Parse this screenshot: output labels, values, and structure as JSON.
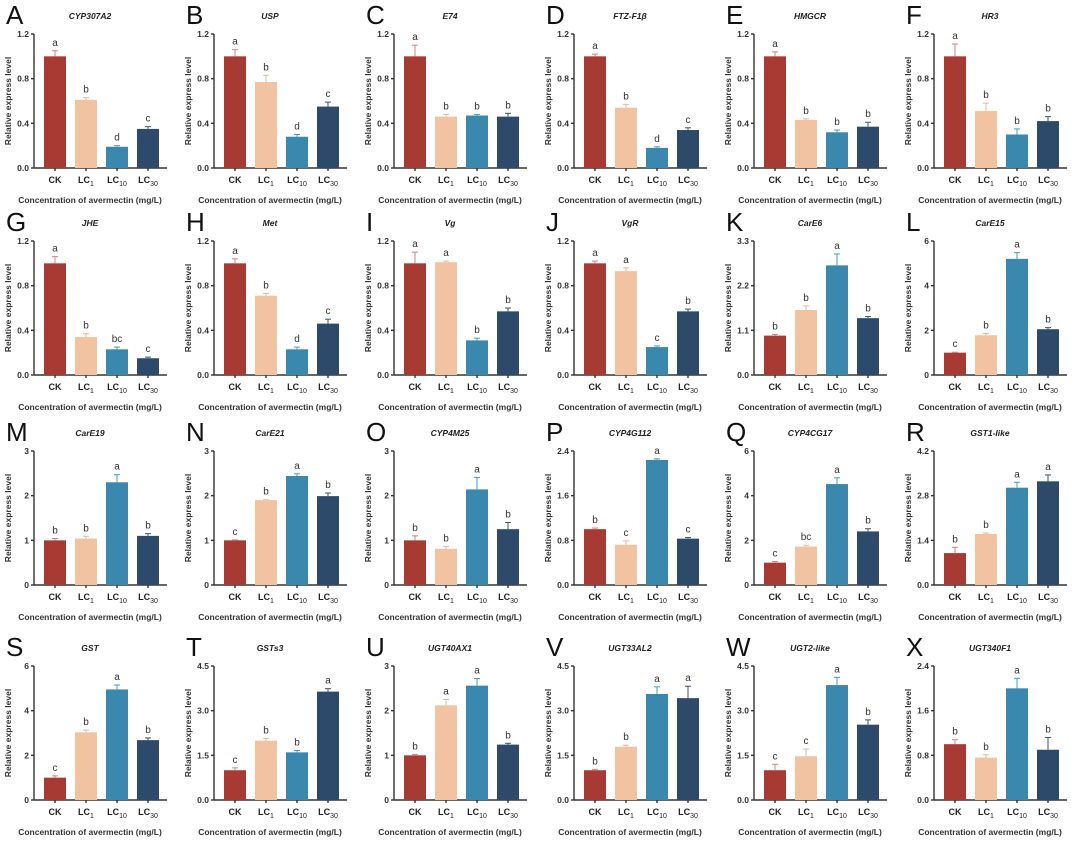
{
  "figure": {
    "x_axis_label": "Concentration of avermectin (mg/L)",
    "y_axis_label": "Relative express level",
    "categories": [
      {
        "main": "CK",
        "sub": ""
      },
      {
        "main": "LC",
        "sub": "1"
      },
      {
        "main": "LC",
        "sub": "10"
      },
      {
        "main": "LC",
        "sub": "30"
      }
    ],
    "colors": [
      "#a83a34",
      "#f2c3a0",
      "#3b88ae",
      "#2e4a6a"
    ]
  },
  "chart_data": [
    {
      "type": "bar",
      "panel": "A",
      "title": "CYP307A2",
      "ylim": [
        0,
        1.2
      ],
      "yticks": [
        "0.0",
        "0.4",
        "0.8",
        "1.2"
      ],
      "values": [
        1.0,
        0.61,
        0.19,
        0.35
      ],
      "errors": [
        0.05,
        0.02,
        0.01,
        0.02
      ],
      "significance": [
        "a",
        "b",
        "d",
        "c"
      ]
    },
    {
      "type": "bar",
      "panel": "B",
      "title": "USP",
      "ylim": [
        0,
        1.2
      ],
      "yticks": [
        "0.0",
        "0.4",
        "0.8",
        "1.2"
      ],
      "values": [
        1.0,
        0.77,
        0.28,
        0.55
      ],
      "errors": [
        0.06,
        0.06,
        0.02,
        0.04
      ],
      "significance": [
        "a",
        "b",
        "d",
        "c"
      ]
    },
    {
      "type": "bar",
      "panel": "C",
      "title": "E74",
      "ylim": [
        0,
        1.2
      ],
      "yticks": [
        "0.0",
        "0.4",
        "0.8",
        "1.2"
      ],
      "values": [
        1.0,
        0.46,
        0.47,
        0.46
      ],
      "errors": [
        0.1,
        0.02,
        0.01,
        0.03
      ],
      "significance": [
        "a",
        "b",
        "b",
        "b"
      ]
    },
    {
      "type": "bar",
      "panel": "D",
      "title": "FTZ-F1β",
      "ylim": [
        0,
        1.2
      ],
      "yticks": [
        "0.0",
        "0.4",
        "0.8",
        "1.2"
      ],
      "values": [
        1.0,
        0.54,
        0.18,
        0.34
      ],
      "errors": [
        0.02,
        0.03,
        0.01,
        0.02
      ],
      "significance": [
        "a",
        "b",
        "d",
        "c"
      ]
    },
    {
      "type": "bar",
      "panel": "E",
      "title": "HMGCR",
      "ylim": [
        0,
        1.2
      ],
      "yticks": [
        "0.0",
        "0.4",
        "0.8",
        "1.2"
      ],
      "values": [
        1.0,
        0.43,
        0.32,
        0.37
      ],
      "errors": [
        0.04,
        0.01,
        0.02,
        0.04
      ],
      "significance": [
        "a",
        "b",
        "b",
        "b"
      ]
    },
    {
      "type": "bar",
      "panel": "F",
      "title": "HR3",
      "ylim": [
        0,
        1.2
      ],
      "yticks": [
        "0.0",
        "0.4",
        "0.8",
        "1.2"
      ],
      "values": [
        1.0,
        0.51,
        0.3,
        0.42
      ],
      "errors": [
        0.11,
        0.07,
        0.05,
        0.04
      ],
      "significance": [
        "a",
        "b",
        "b",
        "b"
      ]
    },
    {
      "type": "bar",
      "panel": "G",
      "title": "JHE",
      "ylim": [
        0,
        1.2
      ],
      "yticks": [
        "0.0",
        "0.4",
        "0.8",
        "1.2"
      ],
      "values": [
        1.0,
        0.34,
        0.23,
        0.15
      ],
      "errors": [
        0.06,
        0.03,
        0.02,
        0.01
      ],
      "significance": [
        "a",
        "b",
        "bc",
        "c"
      ]
    },
    {
      "type": "bar",
      "panel": "H",
      "title": "Met",
      "ylim": [
        0,
        1.2
      ],
      "yticks": [
        "0.0",
        "0.4",
        "0.8",
        "1.2"
      ],
      "values": [
        1.0,
        0.71,
        0.23,
        0.46
      ],
      "errors": [
        0.04,
        0.02,
        0.02,
        0.04
      ],
      "significance": [
        "a",
        "b",
        "d",
        "c"
      ]
    },
    {
      "type": "bar",
      "panel": "I",
      "title": "Vg",
      "ylim": [
        0,
        1.2
      ],
      "yticks": [
        "0.0",
        "0.4",
        "0.8",
        "1.2"
      ],
      "values": [
        1.0,
        1.01,
        0.31,
        0.57
      ],
      "errors": [
        0.1,
        0.01,
        0.02,
        0.03
      ],
      "significance": [
        "a",
        "a",
        "b",
        "b"
      ]
    },
    {
      "type": "bar",
      "panel": "J",
      "title": "VgR",
      "ylim": [
        0,
        1.2
      ],
      "yticks": [
        "0.0",
        "0.4",
        "0.8",
        "1.2"
      ],
      "values": [
        1.0,
        0.93,
        0.25,
        0.57
      ],
      "errors": [
        0.02,
        0.03,
        0.01,
        0.02
      ],
      "significance": [
        "a",
        "a",
        "c",
        "b"
      ]
    },
    {
      "type": "bar",
      "panel": "K",
      "title": "CarE6",
      "ylim": [
        0,
        3.3
      ],
      "yticks": [
        "0.0",
        "1.1",
        "2.2",
        "3.3"
      ],
      "values": [
        0.97,
        1.6,
        2.7,
        1.4
      ],
      "errors": [
        0.03,
        0.1,
        0.28,
        0.04
      ],
      "significance": [
        "b",
        "b",
        "a",
        "b"
      ]
    },
    {
      "type": "bar",
      "panel": "L",
      "title": "CarE15",
      "ylim": [
        0,
        6
      ],
      "yticks": [
        "0",
        "2",
        "4",
        "6"
      ],
      "values": [
        1.0,
        1.78,
        5.2,
        2.05
      ],
      "errors": [
        0.02,
        0.08,
        0.28,
        0.07
      ],
      "significance": [
        "c",
        "b",
        "a",
        "b"
      ]
    },
    {
      "type": "bar",
      "panel": "M",
      "title": "CarE19",
      "ylim": [
        0,
        3
      ],
      "yticks": [
        "0",
        "1",
        "2",
        "3"
      ],
      "values": [
        1.0,
        1.04,
        2.3,
        1.1
      ],
      "errors": [
        0.04,
        0.05,
        0.17,
        0.05
      ],
      "significance": [
        "b",
        "b",
        "a",
        "b"
      ]
    },
    {
      "type": "bar",
      "panel": "N",
      "title": "CarE21",
      "ylim": [
        0,
        3
      ],
      "yticks": [
        "0",
        "1",
        "2",
        "3"
      ],
      "values": [
        1.0,
        1.9,
        2.44,
        1.99
      ],
      "errors": [
        0.01,
        0.01,
        0.05,
        0.07
      ],
      "significance": [
        "c",
        "b",
        "a",
        "b"
      ]
    },
    {
      "type": "bar",
      "panel": "O",
      "title": "CYP4M25",
      "ylim": [
        0,
        3
      ],
      "yticks": [
        "0",
        "1",
        "2",
        "3"
      ],
      "values": [
        1.0,
        0.81,
        2.14,
        1.25
      ],
      "errors": [
        0.1,
        0.05,
        0.27,
        0.15
      ],
      "significance": [
        "b",
        "b",
        "a",
        "b"
      ]
    },
    {
      "type": "bar",
      "panel": "P",
      "title": "CYP4G112",
      "ylim": [
        0,
        2.4
      ],
      "yticks": [
        "0.0",
        "0.8",
        "1.6",
        "2.4"
      ],
      "values": [
        1.0,
        0.72,
        2.24,
        0.83
      ],
      "errors": [
        0.02,
        0.07,
        0.02,
        0.02
      ],
      "significance": [
        "b",
        "c",
        "a",
        "c"
      ]
    },
    {
      "type": "bar",
      "panel": "Q",
      "title": "CYP4CG17",
      "ylim": [
        0,
        6
      ],
      "yticks": [
        "0",
        "2",
        "4",
        "6"
      ],
      "values": [
        1.0,
        1.72,
        4.52,
        2.4
      ],
      "errors": [
        0.05,
        0.06,
        0.28,
        0.12
      ],
      "significance": [
        "c",
        "bc",
        "a",
        "b"
      ]
    },
    {
      "type": "bar",
      "panel": "R",
      "title": "GST1-like",
      "ylim": [
        0,
        4.2
      ],
      "yticks": [
        "0.0",
        "1.4",
        "2.8",
        "4.2"
      ],
      "values": [
        1.0,
        1.6,
        3.05,
        3.25
      ],
      "errors": [
        0.18,
        0.03,
        0.17,
        0.2
      ],
      "significance": [
        "b",
        "b",
        "a",
        "a"
      ]
    },
    {
      "type": "bar",
      "panel": "S",
      "title": "GST",
      "ylim": [
        0,
        6
      ],
      "yticks": [
        "0",
        "2",
        "4",
        "6"
      ],
      "values": [
        1.0,
        3.03,
        4.95,
        2.68
      ],
      "errors": [
        0.08,
        0.1,
        0.2,
        0.1
      ],
      "significance": [
        "c",
        "b",
        "a",
        "b"
      ]
    },
    {
      "type": "bar",
      "panel": "T",
      "title": "GSTs3",
      "ylim": [
        0,
        4.5
      ],
      "yticks": [
        "0.0",
        "1.5",
        "3.0",
        "4.5"
      ],
      "values": [
        1.0,
        1.99,
        1.6,
        3.64
      ],
      "errors": [
        0.08,
        0.08,
        0.06,
        0.1
      ],
      "significance": [
        "c",
        "b",
        "b",
        "a"
      ]
    },
    {
      "type": "bar",
      "panel": "U",
      "title": "UGT40AX1",
      "ylim": [
        0,
        3
      ],
      "yticks": [
        "0",
        "1",
        "2",
        "3"
      ],
      "values": [
        1.0,
        2.12,
        2.56,
        1.24
      ],
      "errors": [
        0.02,
        0.13,
        0.16,
        0.03
      ],
      "significance": [
        "b",
        "a",
        "a",
        "b"
      ]
    },
    {
      "type": "bar",
      "panel": "V",
      "title": "UGT33AL2",
      "ylim": [
        0,
        4.5
      ],
      "yticks": [
        "0.0",
        "1.5",
        "3.0",
        "4.5"
      ],
      "values": [
        1.0,
        1.79,
        3.56,
        3.42
      ],
      "errors": [
        0.03,
        0.05,
        0.24,
        0.4
      ],
      "significance": [
        "b",
        "b",
        "a",
        "a"
      ]
    },
    {
      "type": "bar",
      "panel": "W",
      "title": "UGT2-like",
      "ylim": [
        0,
        4.5
      ],
      "yticks": [
        "0.0",
        "1.5",
        "3.0",
        "4.5"
      ],
      "values": [
        1.0,
        1.47,
        3.86,
        2.53
      ],
      "errors": [
        0.2,
        0.24,
        0.26,
        0.16
      ],
      "significance": [
        "c",
        "c",
        "a",
        "b"
      ]
    },
    {
      "type": "bar",
      "panel": "X",
      "title": "UGT340F1",
      "ylim": [
        0,
        2.4
      ],
      "yticks": [
        "0.0",
        "0.8",
        "1.6",
        "2.4"
      ],
      "values": [
        1.0,
        0.76,
        2.0,
        0.9
      ],
      "errors": [
        0.08,
        0.05,
        0.18,
        0.22
      ],
      "significance": [
        "b",
        "b",
        "a",
        "b"
      ]
    }
  ]
}
